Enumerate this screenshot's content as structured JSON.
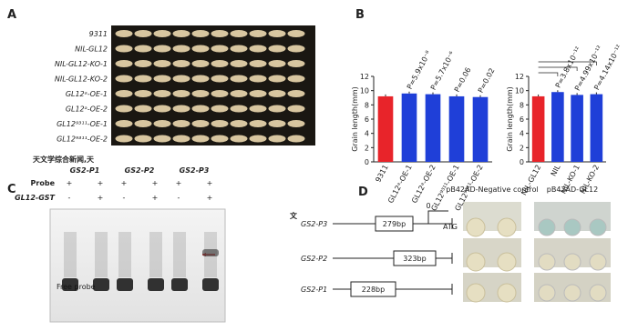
{
  "panel_a": {
    "label": "A",
    "rows": [
      "9311",
      "NIL-GL12",
      "NIL-GL12-KO-1",
      "NIL-GL12-KO-2",
      "GL12ᵃ-OE-1",
      "GL12ᵃ-OE-2",
      "GL12⁹³¹¹-OE-1",
      "GL12⁹³¹¹-OE-2"
    ]
  },
  "panel_b": {
    "label": "B",
    "charts": [
      {
        "type": "bar",
        "y_label": "Grain length(mm)",
        "categories": [
          "9311",
          "GL12ᵃ-OE-1",
          "GL12ᵃ-OE-2",
          "GL12⁹³¹¹-OE-1",
          "GL12⁹³¹¹-OE-2"
        ],
        "values": [
          9.2,
          9.6,
          9.5,
          9.2,
          9.1
        ],
        "colors": [
          "#e8242a",
          "#1f3fd8",
          "#1f3fd8",
          "#1f3fd8",
          "#1f3fd8"
        ],
        "annotations": [
          "P=5.9x10⁻⁸",
          "P=5.7x10⁻⁶",
          "P=0.06",
          "P=0.02"
        ],
        "ylim": [
          0,
          12
        ],
        "yticks": [
          0,
          2,
          4,
          6,
          8,
          10,
          12
        ]
      },
      {
        "type": "bar",
        "y_label": "Grain length(mm)",
        "categories": [
          "NIL-GL12",
          "NIL",
          "NIL-KO-1",
          "NIL-KO-2"
        ],
        "values": [
          9.2,
          9.8,
          9.4,
          9.5
        ],
        "colors": [
          "#e8242a",
          "#1f3fd8",
          "#1f3fd8",
          "#1f3fd8"
        ],
        "annotations": [
          "P=3.8x10⁻¹²",
          "P=4.99x10⁻¹²",
          "P=4.14x10⁻¹²"
        ],
        "ylim": [
          0,
          12
        ],
        "yticks": [
          0,
          2,
          4,
          6,
          8,
          10,
          12
        ]
      }
    ]
  },
  "panel_c": {
    "label": "C",
    "groups": [
      "GS2-P1",
      "GS2-P2",
      "GS2-P3"
    ],
    "row_labels": [
      "Probe",
      "GL12-GST"
    ],
    "probe": [
      "+",
      "+",
      "+",
      "+",
      "+",
      "+"
    ],
    "gst": [
      "-",
      "+",
      "-",
      "+",
      "-",
      "+"
    ],
    "free_probe": "Free probe"
  },
  "panel_d": {
    "label": "D",
    "columns": [
      "pB42AD-Negative control",
      "pB42AD-GL12"
    ],
    "rows": [
      {
        "name": "GS2-P3",
        "size": "279bp"
      },
      {
        "name": "GS2-P2",
        "size": "323bp"
      },
      {
        "name": "GS2-P1",
        "size": "228bp"
      }
    ],
    "start": "0",
    "atg": "ATG"
  },
  "watermark": [
    "天文学综合新闻,天",
    "文"
  ]
}
